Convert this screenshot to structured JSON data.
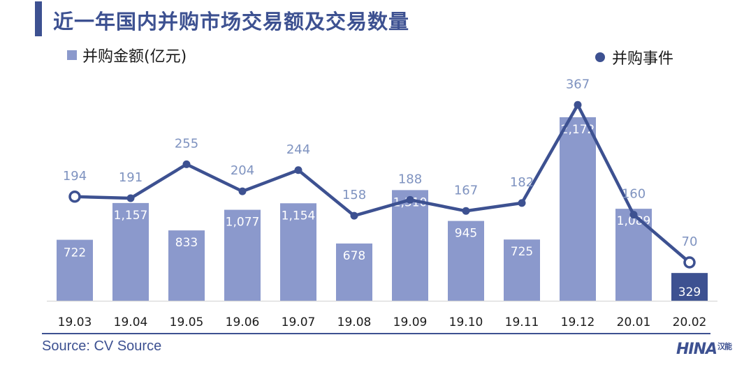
{
  "title": "近一年国内并购市场交易额及交易数量",
  "legend": {
    "bar_label": "并购金额(亿元)",
    "line_label": "并购事件"
  },
  "source": "Source: CV Source",
  "logo": {
    "text": "HINA",
    "mark": "汉能"
  },
  "colors": {
    "bar": "#8b99cc",
    "bar_last": "#3d5191",
    "line": "#3d5191",
    "accent": "#3d5191"
  },
  "chart_data": {
    "type": "bar",
    "categories": [
      "19.03",
      "19.04",
      "19.05",
      "19.06",
      "19.07",
      "19.08",
      "19.09",
      "19.10",
      "19.11",
      "19.12",
      "20.01",
      "20.02"
    ],
    "series": [
      {
        "name": "并购金额(亿元)",
        "type": "bar",
        "values": [
          722,
          1157,
          833,
          1077,
          1154,
          678,
          1310,
          945,
          725,
          2172,
          1089,
          329
        ],
        "labels": [
          "722",
          "1,157",
          "833",
          "1,077",
          "1,154",
          "678",
          "1,310",
          "945",
          "725",
          "2,172",
          "1,089",
          "329"
        ]
      },
      {
        "name": "并购事件",
        "type": "line",
        "values": [
          194,
          191,
          255,
          204,
          244,
          158,
          188,
          167,
          182,
          367,
          160,
          70
        ],
        "labels": [
          "194",
          "191",
          "255",
          "204",
          "244",
          "158",
          "188",
          "167",
          "182",
          "367",
          "160",
          "70"
        ]
      }
    ],
    "legend_position": "top",
    "grid": false
  }
}
